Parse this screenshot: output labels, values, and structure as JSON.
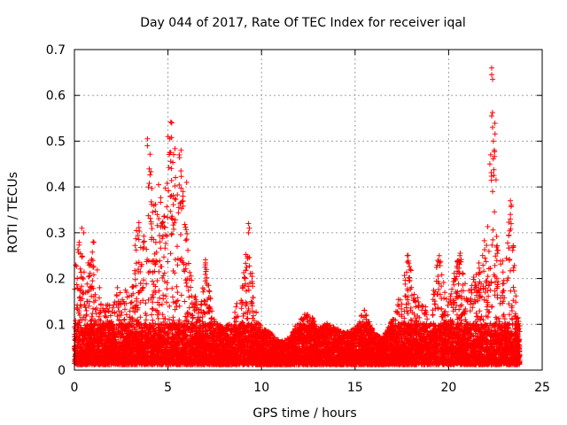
{
  "chart_data": {
    "type": "scatter",
    "title": "Day 044 of 2017, Rate Of TEC Index for receiver iqal",
    "xlabel": "GPS time / hours",
    "ylabel": "ROTI / TECUs",
    "xlim": [
      0,
      25
    ],
    "ylim": [
      0,
      0.7
    ],
    "xticks": [
      0,
      5,
      10,
      15,
      20,
      25
    ],
    "yticks": [
      0,
      0.1,
      0.2,
      0.3,
      0.4,
      0.5,
      0.6,
      0.7
    ],
    "xtick_labels": [
      "0",
      "5",
      "10",
      "15",
      "20",
      "25"
    ],
    "ytick_labels": [
      "0",
      "0.1",
      "0.2",
      "0.3",
      "0.4",
      "0.5",
      "0.6",
      "0.7"
    ],
    "grid": true,
    "marker": "+",
    "color": "#ff0000",
    "series": [
      {
        "name": "ROTI",
        "x_range": [
          0,
          23.8
        ],
        "envelope": [
          [
            0.0,
            0.22
          ],
          [
            0.3,
            0.3
          ],
          [
            0.6,
            0.21
          ],
          [
            1.0,
            0.28
          ],
          [
            1.5,
            0.13
          ],
          [
            2.0,
            0.14
          ],
          [
            2.5,
            0.17
          ],
          [
            3.0,
            0.16
          ],
          [
            3.3,
            0.3
          ],
          [
            3.6,
            0.33
          ],
          [
            3.9,
            0.32
          ],
          [
            4.0,
            0.5
          ],
          [
            4.2,
            0.35
          ],
          [
            4.5,
            0.4
          ],
          [
            4.8,
            0.32
          ],
          [
            5.0,
            0.51
          ],
          [
            5.2,
            0.54
          ],
          [
            5.5,
            0.48
          ],
          [
            5.8,
            0.42
          ],
          [
            6.0,
            0.3
          ],
          [
            6.3,
            0.17
          ],
          [
            6.7,
            0.12
          ],
          [
            7.0,
            0.23
          ],
          [
            7.5,
            0.1
          ],
          [
            8.0,
            0.08
          ],
          [
            8.5,
            0.1
          ],
          [
            9.0,
            0.2
          ],
          [
            9.3,
            0.32
          ],
          [
            9.6,
            0.13
          ],
          [
            10.0,
            0.08
          ],
          [
            10.5,
            0.07
          ],
          [
            11.0,
            0.05
          ],
          [
            11.5,
            0.06
          ],
          [
            12.0,
            0.1
          ],
          [
            12.5,
            0.12
          ],
          [
            13.0,
            0.08
          ],
          [
            13.5,
            0.09
          ],
          [
            14.0,
            0.08
          ],
          [
            14.5,
            0.07
          ],
          [
            15.0,
            0.08
          ],
          [
            15.5,
            0.13
          ],
          [
            16.0,
            0.07
          ],
          [
            16.5,
            0.06
          ],
          [
            17.0,
            0.1
          ],
          [
            17.5,
            0.17
          ],
          [
            17.8,
            0.25
          ],
          [
            18.2,
            0.16
          ],
          [
            18.5,
            0.14
          ],
          [
            19.0,
            0.13
          ],
          [
            19.5,
            0.25
          ],
          [
            20.0,
            0.14
          ],
          [
            20.3,
            0.2
          ],
          [
            20.6,
            0.25
          ],
          [
            21.0,
            0.16
          ],
          [
            21.5,
            0.21
          ],
          [
            21.8,
            0.25
          ],
          [
            22.0,
            0.3
          ],
          [
            22.2,
            0.35
          ],
          [
            22.4,
            0.66
          ],
          [
            22.6,
            0.3
          ],
          [
            23.0,
            0.2
          ],
          [
            23.3,
            0.37
          ],
          [
            23.6,
            0.18
          ],
          [
            23.8,
            0.1
          ]
        ],
        "outliers": [
          [
            22.3,
            0.66
          ],
          [
            22.3,
            0.645
          ],
          [
            22.35,
            0.635
          ],
          [
            22.3,
            0.555
          ],
          [
            22.35,
            0.53
          ],
          [
            22.25,
            0.47
          ],
          [
            22.2,
            0.45
          ],
          [
            22.35,
            0.39
          ],
          [
            5.2,
            0.54
          ],
          [
            5.0,
            0.51
          ],
          [
            5.1,
            0.505
          ],
          [
            5.1,
            0.475
          ],
          [
            3.9,
            0.505
          ],
          [
            3.9,
            0.49
          ],
          [
            4.5,
            0.405
          ],
          [
            5.7,
            0.48
          ],
          [
            5.6,
            0.47
          ],
          [
            6.0,
            0.41
          ],
          [
            5.8,
            0.39
          ],
          [
            9.3,
            0.32
          ],
          [
            9.35,
            0.31
          ],
          [
            9.3,
            0.3
          ],
          [
            0.4,
            0.31
          ],
          [
            0.5,
            0.3
          ],
          [
            1.0,
            0.28
          ],
          [
            17.8,
            0.25
          ],
          [
            19.5,
            0.25
          ],
          [
            20.6,
            0.25
          ],
          [
            23.3,
            0.37
          ],
          [
            23.35,
            0.36
          ],
          [
            23.3,
            0.34
          ],
          [
            23.3,
            0.33
          ],
          [
            23.25,
            0.24
          ],
          [
            7.0,
            0.23
          ],
          [
            7.05,
            0.22
          ],
          [
            9.0,
            0.18
          ],
          [
            2.3,
            0.18
          ],
          [
            12.4,
            0.12
          ],
          [
            15.5,
            0.13
          ],
          [
            15.6,
            0.12
          ]
        ]
      }
    ]
  }
}
